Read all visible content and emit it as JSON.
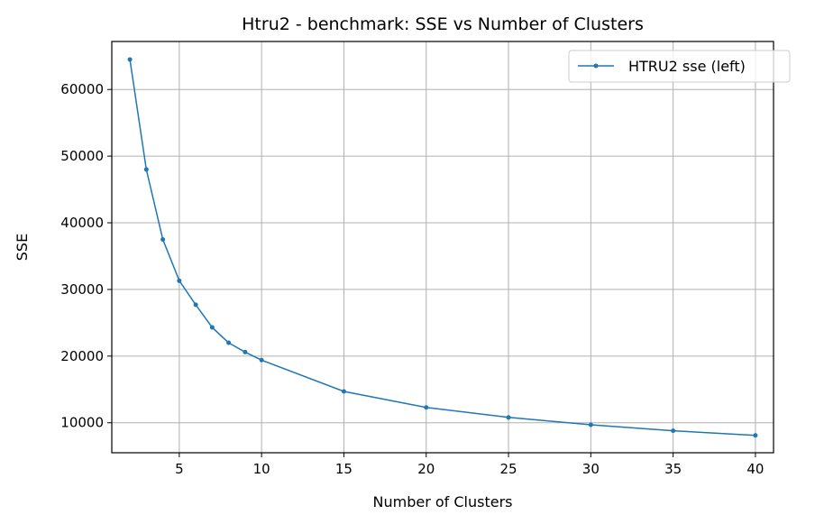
{
  "chart_data": {
    "type": "line",
    "title": "Htru2 - benchmark: SSE vs Number of Clusters",
    "xlabel": "Number of Clusters",
    "ylabel": "SSE",
    "xlim": [
      0.9,
      41.1
    ],
    "ylim": [
      5500,
      67200
    ],
    "x_ticks": [
      5,
      10,
      15,
      20,
      25,
      30,
      35,
      40
    ],
    "y_ticks": [
      10000,
      20000,
      30000,
      40000,
      50000,
      60000
    ],
    "grid": true,
    "legend_position": "top-right",
    "series": [
      {
        "name": "HTRU2 sse (left)",
        "color": "#1f77b4",
        "marker": "circle",
        "x": [
          2,
          3,
          4,
          5,
          6,
          7,
          8,
          9,
          10,
          15,
          20,
          25,
          30,
          35,
          40
        ],
        "y": [
          64500,
          48000,
          37500,
          31300,
          27700,
          24300,
          22000,
          20600,
          19400,
          14700,
          12300,
          10800,
          9700,
          8800,
          8100
        ]
      }
    ]
  }
}
